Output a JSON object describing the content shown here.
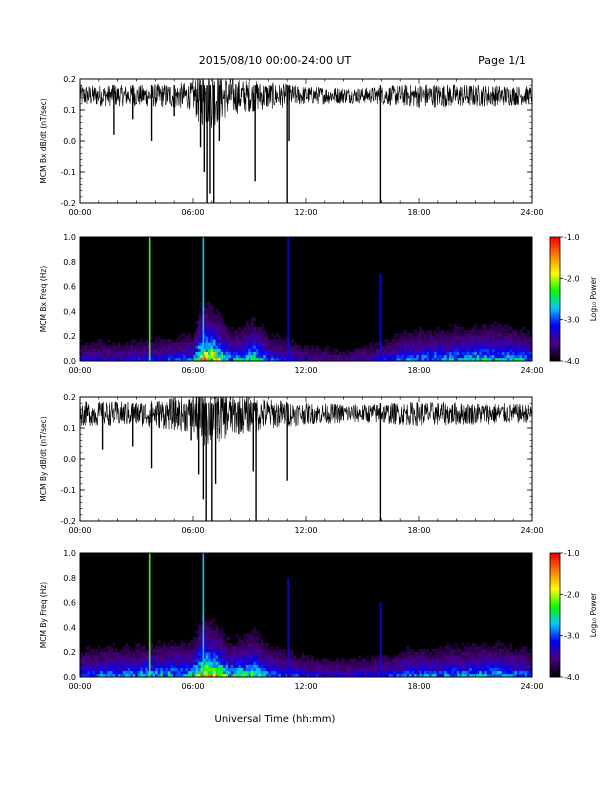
{
  "header": {
    "title": "2015/08/10  00:00-24:00 UT",
    "page": "Page 1/1"
  },
  "footer": {
    "xlabel": "Universal Time (hh:mm)"
  },
  "colors": {
    "line": "#000000",
    "spectrogram_background": "#000000",
    "colormap": [
      "#000000",
      "#4b0082",
      "#0000ff",
      "#00c8ff",
      "#00ff00",
      "#ffff00",
      "#ff8000",
      "#ff0000"
    ]
  },
  "chart_data": [
    {
      "type": "line",
      "id": "bx-timeseries",
      "ylabel": "MCM Bx dB/dt (nT/sec)",
      "ylim": [
        -0.2,
        0.2
      ],
      "yticks": [
        "0.2",
        "0.1",
        "0.0",
        "-0.1",
        "-0.2"
      ],
      "xlim": [
        "00:00",
        "24:00"
      ],
      "xticks": [
        "00:00",
        "06:00",
        "12:00",
        "18:00",
        "24:00"
      ],
      "grid": false,
      "baseline": 0.15,
      "noise_band": [
        [
          0,
          0.035
        ],
        [
          3,
          0.035
        ],
        [
          6,
          0.045
        ],
        [
          6.3,
          0.09
        ],
        [
          7,
          0.1
        ],
        [
          8,
          0.06
        ],
        [
          10,
          0.045
        ],
        [
          12,
          0.03
        ],
        [
          15,
          0.025
        ],
        [
          18,
          0.04
        ],
        [
          22,
          0.035
        ],
        [
          24,
          0.03
        ]
      ],
      "spikes": [
        {
          "x": 1.8,
          "ymin": 0.02
        },
        {
          "x": 2.8,
          "ymin": 0.07
        },
        {
          "x": 3.8,
          "ymin": 0.0
        },
        {
          "x": 5.0,
          "ymin": 0.08
        },
        {
          "x": 6.4,
          "ymin": -0.02
        },
        {
          "x": 6.6,
          "ymin": -0.1
        },
        {
          "x": 6.75,
          "ymin": -0.2
        },
        {
          "x": 6.9,
          "ymin": -0.17
        },
        {
          "x": 7.1,
          "ymin": -0.2
        },
        {
          "x": 7.4,
          "ymin": 0.0
        },
        {
          "x": 9.3,
          "ymin": -0.13
        },
        {
          "x": 11.0,
          "ymin": -0.2
        },
        {
          "x": 11.1,
          "ymin": 0.0
        },
        {
          "x": 15.95,
          "ymin": -0.2
        }
      ]
    },
    {
      "type": "heatmap",
      "id": "bx-spectrogram",
      "ylabel": "MCM Bx Freq (Hz)",
      "ylim": [
        0.0,
        1.0
      ],
      "yticks": [
        "1.0",
        "0.8",
        "0.6",
        "0.4",
        "0.2",
        "0.0"
      ],
      "xlim": [
        "00:00",
        "24:00"
      ],
      "xticks": [
        "00:00",
        "06:00",
        "12:00",
        "18:00",
        "24:00"
      ],
      "colorbar": {
        "label": "Log₁₀ Power",
        "range": [
          -4.0,
          -1.0
        ],
        "ticks": [
          "-1.0",
          "-2.0",
          "-3.0",
          "-4.0"
        ]
      },
      "activity": [
        [
          0,
          0.3
        ],
        [
          2,
          0.3
        ],
        [
          4,
          0.35
        ],
        [
          6,
          0.45
        ],
        [
          6.5,
          1.0
        ],
        [
          7.2,
          0.9
        ],
        [
          8,
          0.5
        ],
        [
          9.3,
          0.7
        ],
        [
          10,
          0.45
        ],
        [
          12,
          0.25
        ],
        [
          14,
          0.2
        ],
        [
          16,
          0.3
        ],
        [
          17.5,
          0.5
        ],
        [
          20,
          0.55
        ],
        [
          22,
          0.6
        ],
        [
          24,
          0.5
        ]
      ],
      "vertical_lines": [
        {
          "x": 3.7,
          "top": 1.0,
          "level": -2.2
        },
        {
          "x": 6.55,
          "top": 1.0,
          "level": -2.7
        },
        {
          "x": 11.05,
          "top": 1.0,
          "level": -3.2
        },
        {
          "x": 15.95,
          "top": 0.7,
          "level": -3.2
        }
      ]
    },
    {
      "type": "line",
      "id": "by-timeseries",
      "ylabel": "MCM By dB/dt (nT/sec)",
      "ylim": [
        -0.2,
        0.2
      ],
      "yticks": [
        "0.2",
        "0.1",
        "0.0",
        "-0.1",
        "-0.2"
      ],
      "xlim": [
        "00:00",
        "24:00"
      ],
      "xticks": [
        "00:00",
        "06:00",
        "12:00",
        "18:00",
        "24:00"
      ],
      "grid": false,
      "baseline": 0.15,
      "noise_band": [
        [
          0,
          0.04
        ],
        [
          3,
          0.04
        ],
        [
          6,
          0.06
        ],
        [
          6.3,
          0.1
        ],
        [
          7,
          0.1
        ],
        [
          8,
          0.07
        ],
        [
          10,
          0.05
        ],
        [
          12,
          0.035
        ],
        [
          15,
          0.03
        ],
        [
          18,
          0.04
        ],
        [
          22,
          0.035
        ],
        [
          24,
          0.03
        ]
      ],
      "spikes": [
        {
          "x": 1.2,
          "ymin": 0.03
        },
        {
          "x": 2.8,
          "ymin": 0.04
        },
        {
          "x": 3.8,
          "ymin": -0.03
        },
        {
          "x": 5.9,
          "ymin": 0.06
        },
        {
          "x": 6.3,
          "ymin": -0.05
        },
        {
          "x": 6.55,
          "ymin": -0.13
        },
        {
          "x": 6.7,
          "ymin": -0.2
        },
        {
          "x": 7.0,
          "ymin": -0.2
        },
        {
          "x": 7.2,
          "ymin": -0.08
        },
        {
          "x": 9.2,
          "ymin": -0.04
        },
        {
          "x": 9.35,
          "ymin": -0.2
        },
        {
          "x": 11.0,
          "ymin": -0.07
        },
        {
          "x": 15.95,
          "ymin": -0.2
        }
      ]
    },
    {
      "type": "heatmap",
      "id": "by-spectrogram",
      "ylabel": "MCM By Freq (Hz)",
      "ylim": [
        0.0,
        1.0
      ],
      "yticks": [
        "1.0",
        "0.8",
        "0.6",
        "0.4",
        "0.2",
        "0.0"
      ],
      "xlim": [
        "00:00",
        "24:00"
      ],
      "xticks": [
        "00:00",
        "06:00",
        "12:00",
        "18:00",
        "24:00"
      ],
      "colorbar": {
        "label": "Log₁₀ Power",
        "range": [
          -4.0,
          -1.0
        ],
        "ticks": [
          "-1.0",
          "-2.0",
          "-3.0",
          "-4.0"
        ]
      },
      "activity": [
        [
          0,
          0.45
        ],
        [
          2,
          0.5
        ],
        [
          4,
          0.55
        ],
        [
          6,
          0.6
        ],
        [
          6.5,
          1.0
        ],
        [
          7.2,
          0.9
        ],
        [
          8,
          0.6
        ],
        [
          9.3,
          0.75
        ],
        [
          10,
          0.5
        ],
        [
          12,
          0.35
        ],
        [
          14,
          0.3
        ],
        [
          16,
          0.35
        ],
        [
          17.5,
          0.45
        ],
        [
          20,
          0.5
        ],
        [
          22,
          0.55
        ],
        [
          24,
          0.45
        ]
      ],
      "vertical_lines": [
        {
          "x": 3.7,
          "top": 1.0,
          "level": -2.2
        },
        {
          "x": 6.55,
          "top": 1.0,
          "level": -2.7
        },
        {
          "x": 11.05,
          "top": 0.8,
          "level": -3.3
        },
        {
          "x": 15.95,
          "top": 0.6,
          "level": -3.3
        }
      ]
    }
  ]
}
